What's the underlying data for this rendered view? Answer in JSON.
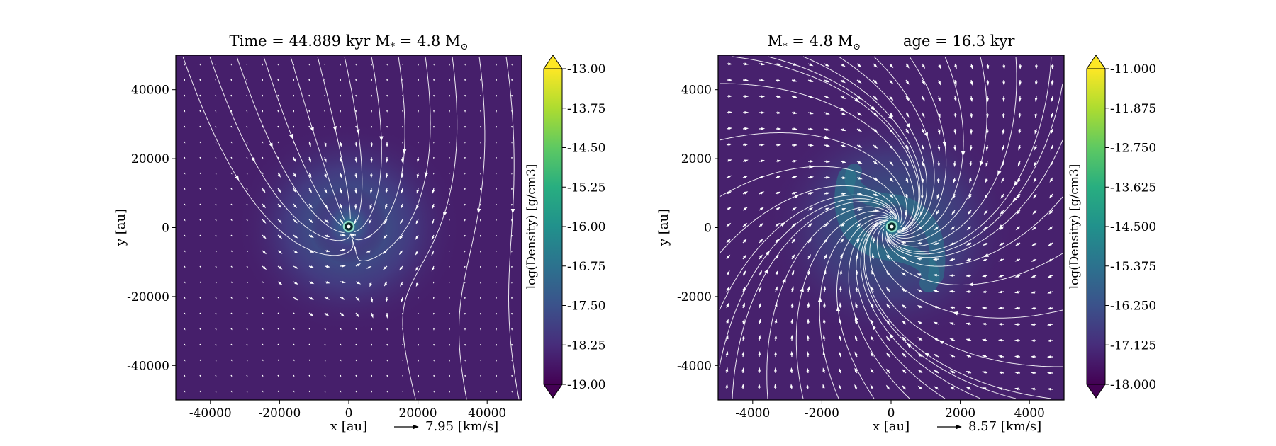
{
  "chart_data": [
    {
      "type": "heatmap",
      "title": "Time = 44.889 kyr    M$_*$ = 4.8 M$_\\odot$",
      "title_display": "Time = 44.889 kyr    M",
      "title_star_sub": "*",
      "title_mass": " = 4.8 M",
      "title_sun_sub": "⊙",
      "xlabel": "x [au]",
      "ylabel": "y [au]",
      "xlim": [
        -50000,
        50000
      ],
      "ylim": [
        -50000,
        50000
      ],
      "xticks": [
        -40000,
        -20000,
        0,
        20000,
        40000
      ],
      "yticks": [
        -40000,
        -20000,
        0,
        20000,
        40000
      ],
      "xtick_labels": [
        "-40000",
        "-20000",
        "0",
        "20000",
        "40000"
      ],
      "ytick_labels": [
        "-40000",
        "-20000",
        "0",
        "20000",
        "40000"
      ],
      "colorbar": {
        "label": "log(Density) [g/cm3]",
        "min": -19.0,
        "max": -13.0,
        "ticks": [
          -19.0,
          -18.25,
          -17.5,
          -16.75,
          -16.0,
          -15.25,
          -14.5,
          -13.75,
          -13.0
        ],
        "tick_labels": [
          "-19.00",
          "-18.25",
          "-17.50",
          "-16.75",
          "-16.00",
          "-15.25",
          "-14.50",
          "-13.75",
          "-13.00"
        ],
        "colormap": "viridis",
        "extend": "both"
      },
      "density_background": -18.7,
      "density_peak": -16.3,
      "quiver_key": {
        "value": 7.95,
        "label": "7.95 [km/s]"
      },
      "flow": "streamlines run mostly top-to-bottom with slight tilt, converging around the central star",
      "star": {
        "x": 0,
        "y": 0
      }
    },
    {
      "type": "heatmap",
      "title": "M$_*$ = 4.8 M$_\\odot$        age = 16.3 kyr",
      "title_display": "M",
      "title_star_sub": "*",
      "title_mass": " = 4.8 M",
      "title_sun_sub": "⊙",
      "title_age": "age = 16.3 kyr",
      "xlabel": "x [au]",
      "ylabel": "y [au]",
      "xlim": [
        -5000,
        5000
      ],
      "ylim": [
        -5000,
        5000
      ],
      "xticks": [
        -4000,
        -2000,
        0,
        2000,
        4000
      ],
      "yticks": [
        -4000,
        -2000,
        0,
        2000,
        4000
      ],
      "xtick_labels": [
        "-4000",
        "-2000",
        "0",
        "2000",
        "4000"
      ],
      "ytick_labels": [
        "-4000",
        "-2000",
        "0",
        "2000",
        "4000"
      ],
      "colorbar": {
        "label": "log(Density) [g/cm3]",
        "min": -18.0,
        "max": -11.0,
        "ticks": [
          -18.0,
          -17.125,
          -16.25,
          -15.375,
          -14.5,
          -13.625,
          -12.75,
          -11.875,
          -11.0
        ],
        "tick_labels": [
          "-18.000",
          "-17.125",
          "-16.250",
          "-15.375",
          "-14.500",
          "-13.625",
          "-12.750",
          "-11.875",
          "-11.000"
        ],
        "colormap": "viridis",
        "extend": "both"
      },
      "density_background": -17.4,
      "density_peak": -15.0,
      "quiver_key": {
        "value": 8.57,
        "label": "8.57 [km/s]"
      },
      "flow": "streamlines spiral inward toward the central star forming a two-armed spiral",
      "star": {
        "x": 0,
        "y": 0
      }
    }
  ]
}
